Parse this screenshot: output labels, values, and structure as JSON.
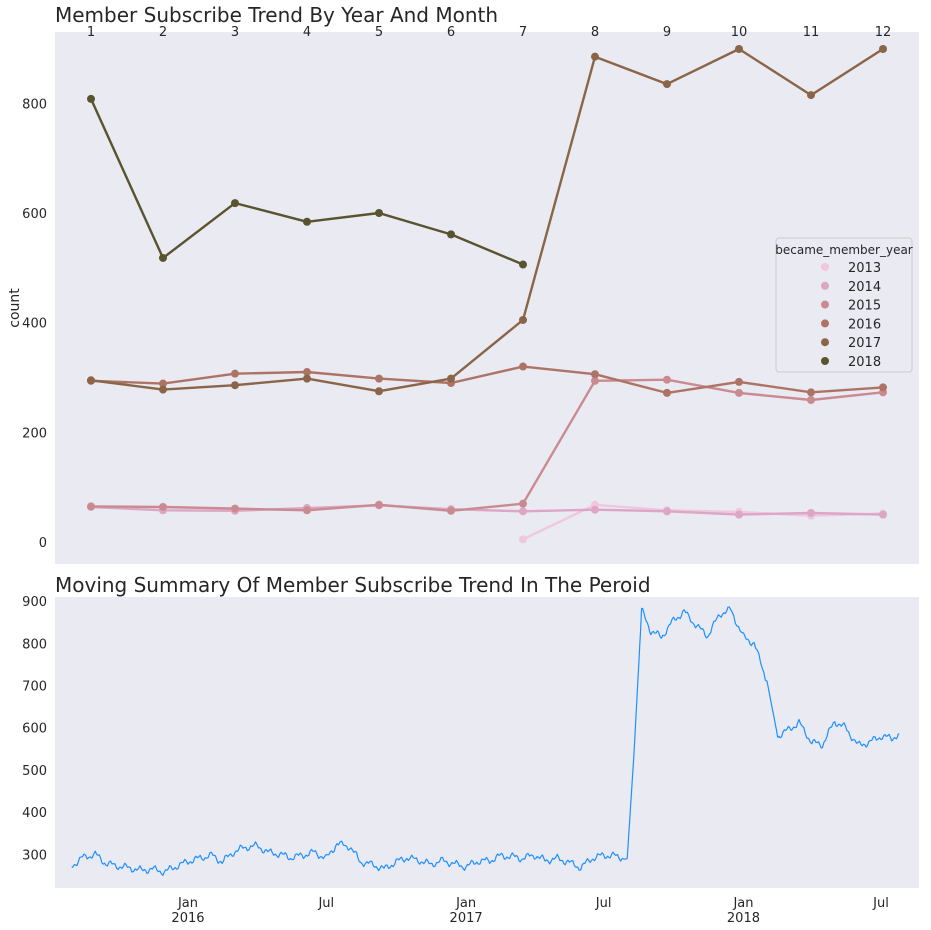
{
  "chart_data": [
    {
      "type": "line",
      "title": "Member Subscribe Trend By Year And Month",
      "xlabel": "",
      "ylabel": "count",
      "x_axis_position": "top",
      "categories": [
        "1",
        "2",
        "3",
        "4",
        "5",
        "6",
        "7",
        "8",
        "9",
        "10",
        "11",
        "12"
      ],
      "yticks": [
        0,
        200,
        400,
        600,
        800
      ],
      "ylim": [
        -40,
        930
      ],
      "grid": false,
      "background": "#eaeaf2",
      "legend": {
        "title": "became_member_year",
        "placement": "center-right"
      },
      "series": [
        {
          "name": "2013",
          "color": "#efc8de",
          "values": [
            null,
            null,
            null,
            null,
            null,
            null,
            5,
            68,
            58,
            55,
            48,
            52
          ]
        },
        {
          "name": "2014",
          "color": "#dca6c4",
          "values": [
            64,
            58,
            57,
            62,
            67,
            60,
            56,
            59,
            56,
            50,
            53,
            50
          ]
        },
        {
          "name": "2015",
          "color": "#c98b91",
          "values": [
            65,
            64,
            61,
            58,
            68,
            57,
            70,
            294,
            296,
            272,
            259,
            273
          ]
        },
        {
          "name": "2016",
          "color": "#ad7466",
          "values": [
            294,
            289,
            307,
            310,
            298,
            290,
            320,
            306,
            272,
            292,
            273,
            282
          ]
        },
        {
          "name": "2017",
          "color": "#8a6547",
          "values": [
            295,
            278,
            286,
            298,
            275,
            298,
            405,
            885,
            835,
            899,
            815,
            899
          ]
        },
        {
          "name": "2018",
          "color": "#5a532f",
          "values": [
            808,
            518,
            618,
            584,
            600,
            561,
            506,
            null,
            null,
            null,
            null,
            null
          ]
        }
      ]
    },
    {
      "type": "line",
      "title": "Moving Summary Of Member Subscribe Trend In The Peroid",
      "xlabel": "",
      "ylabel": "",
      "xticks": [
        {
          "date": "2016-01-01",
          "label": "Jan",
          "sublabel": "2016"
        },
        {
          "date": "2016-07-01",
          "label": "Jul",
          "sublabel": ""
        },
        {
          "date": "2017-01-01",
          "label": "Jan",
          "sublabel": "2017"
        },
        {
          "date": "2017-07-01",
          "label": "Jul",
          "sublabel": ""
        },
        {
          "date": "2018-01-01",
          "label": "Jan",
          "sublabel": "2018"
        },
        {
          "date": "2018-07-01",
          "label": "Jul",
          "sublabel": ""
        }
      ],
      "xlim": [
        "2015-07-10",
        "2018-08-20"
      ],
      "yticks": [
        300,
        400,
        500,
        600,
        700,
        800,
        900
      ],
      "ylim": [
        220,
        910
      ],
      "grid": false,
      "background": "#eaeaf2",
      "series": [
        {
          "color": "#1e90ff",
          "x": [
            "2015-08-01",
            "2015-08-15",
            "2015-09-01",
            "2015-09-15",
            "2015-10-01",
            "2015-10-15",
            "2015-11-01",
            "2015-11-15",
            "2015-12-01",
            "2015-12-15",
            "2016-01-01",
            "2016-01-15",
            "2016-02-01",
            "2016-02-15",
            "2016-03-01",
            "2016-03-15",
            "2016-04-01",
            "2016-04-15",
            "2016-05-01",
            "2016-05-15",
            "2016-06-01",
            "2016-06-15",
            "2016-07-01",
            "2016-07-15",
            "2016-08-01",
            "2016-08-15",
            "2016-09-01",
            "2016-09-15",
            "2016-10-01",
            "2016-10-15",
            "2016-11-01",
            "2016-11-15",
            "2016-12-01",
            "2016-12-15",
            "2017-01-01",
            "2017-01-15",
            "2017-02-01",
            "2017-02-15",
            "2017-03-01",
            "2017-03-15",
            "2017-04-01",
            "2017-04-15",
            "2017-05-01",
            "2017-05-15",
            "2017-06-01",
            "2017-06-15",
            "2017-07-01",
            "2017-07-15",
            "2017-08-01",
            "2017-08-10",
            "2017-08-20",
            "2017-09-01",
            "2017-09-15",
            "2017-10-01",
            "2017-10-15",
            "2017-11-01",
            "2017-11-15",
            "2017-12-01",
            "2017-12-15",
            "2018-01-01",
            "2018-01-15",
            "2018-02-01",
            "2018-02-15",
            "2018-03-01",
            "2018-03-15",
            "2018-04-01",
            "2018-04-15",
            "2018-05-01",
            "2018-05-15",
            "2018-06-01",
            "2018-06-15",
            "2018-07-01",
            "2018-07-15",
            "2018-07-25"
          ],
          "y": [
            272,
            292,
            300,
            278,
            272,
            268,
            262,
            265,
            258,
            270,
            283,
            290,
            298,
            282,
            305,
            316,
            320,
            305,
            300,
            292,
            298,
            305,
            290,
            325,
            318,
            282,
            275,
            265,
            282,
            292,
            285,
            276,
            285,
            278,
            270,
            283,
            285,
            296,
            295,
            290,
            298,
            285,
            290,
            282,
            268,
            290,
            298,
            296,
            290,
            540,
            878,
            830,
            815,
            855,
            875,
            840,
            818,
            870,
            880,
            815,
            800,
            710,
            580,
            595,
            612,
            565,
            560,
            615,
            600,
            558,
            565,
            580,
            575,
            585
          ]
        }
      ]
    }
  ]
}
